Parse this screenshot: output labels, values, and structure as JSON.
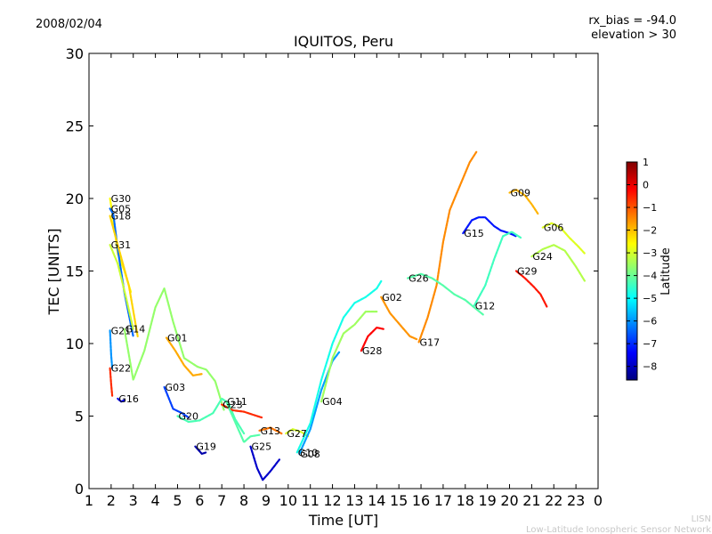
{
  "header": {
    "date": "2008/02/04",
    "bias": "rx_bias = -94.0",
    "elevation": "elevation > 30"
  },
  "footer": {
    "org_short": "LISN",
    "org_full": "Low-Latitude Ionospheric Sensor Network"
  },
  "chart_data": {
    "type": "scatter",
    "title": "IQUITOS, Peru",
    "xlabel": "Time [UT]",
    "ylabel": "TEC [UNITS]",
    "xlim": [
      1,
      24
    ],
    "ylim": [
      0,
      30
    ],
    "xticks": [
      "1",
      "2",
      "3",
      "4",
      "5",
      "6",
      "7",
      "8",
      "9",
      "10",
      "11",
      "12",
      "13",
      "14",
      "15",
      "16",
      "17",
      "18",
      "19",
      "20",
      "21",
      "22",
      "23",
      "0"
    ],
    "yticks": [
      0,
      5,
      10,
      15,
      20,
      25,
      30
    ],
    "grid": false,
    "colorbar": {
      "label": "Latitude",
      "ticks": [
        "1",
        "0",
        "−1",
        "−2",
        "−3",
        "−4",
        "−5",
        "−6",
        "−7",
        "−8"
      ],
      "range": [
        -8.6,
        1
      ],
      "colors": [
        "#00007f",
        "#0000ff",
        "#007fff",
        "#00ffff",
        "#7fff7f",
        "#ffff00",
        "#ff7f00",
        "#ff0000",
        "#7f0000"
      ]
    },
    "series": [
      {
        "name": "G30",
        "lat": -2.6,
        "points": [
          [
            1.95,
            20.0
          ],
          [
            2.1,
            18.5
          ],
          [
            2.3,
            16.2
          ],
          [
            2.6,
            15.0
          ],
          [
            2.9,
            13.5
          ]
        ]
      },
      {
        "name": "G05",
        "lat": -6.4,
        "points": [
          [
            1.95,
            19.3
          ],
          [
            2.1,
            18.9
          ],
          [
            2.3,
            16.5
          ],
          [
            2.6,
            13.5
          ],
          [
            3.0,
            10.5
          ]
        ]
      },
      {
        "name": "G18",
        "lat": -2.2,
        "points": [
          [
            1.95,
            18.8
          ],
          [
            2.3,
            16.8
          ],
          [
            2.8,
            14.0
          ],
          [
            3.2,
            10.5
          ]
        ]
      },
      {
        "name": "G31",
        "lat": -3.1,
        "points": [
          [
            1.95,
            16.8
          ],
          [
            2.3,
            15.5
          ],
          [
            2.7,
            13.0
          ],
          [
            3.0,
            11.0
          ]
        ]
      },
      {
        "name": "G21",
        "lat": -6.0,
        "points": [
          [
            1.95,
            10.9
          ],
          [
            2.0,
            9.2
          ],
          [
            2.05,
            8.3
          ]
        ]
      },
      {
        "name": "G22",
        "lat": -0.6,
        "points": [
          [
            1.95,
            8.3
          ],
          [
            2.0,
            7.2
          ],
          [
            2.05,
            6.4
          ]
        ]
      },
      {
        "name": "G16",
        "lat": -7.6,
        "points": [
          [
            2.3,
            6.2
          ],
          [
            2.45,
            6.0
          ],
          [
            2.6,
            6.1
          ]
        ]
      },
      {
        "name": "G14",
        "lat": -3.6,
        "points": [
          [
            2.6,
            11.0
          ],
          [
            3.0,
            7.5
          ],
          [
            3.5,
            9.5
          ],
          [
            4.0,
            12.5
          ],
          [
            4.4,
            13.8
          ],
          [
            4.8,
            11.5
          ],
          [
            5.3,
            9.0
          ],
          [
            5.9,
            8.4
          ],
          [
            6.3,
            8.2
          ],
          [
            6.7,
            7.4
          ],
          [
            7.1,
            5.4
          ]
        ]
      },
      {
        "name": "G01",
        "lat": -1.8,
        "points": [
          [
            4.5,
            10.4
          ],
          [
            4.9,
            9.5
          ],
          [
            5.3,
            8.5
          ],
          [
            5.7,
            7.8
          ],
          [
            6.1,
            7.9
          ]
        ]
      },
      {
        "name": "G03",
        "lat": -6.8,
        "points": [
          [
            4.4,
            7.0
          ],
          [
            4.8,
            5.5
          ],
          [
            5.2,
            5.2
          ],
          [
            5.5,
            4.9
          ]
        ]
      },
      {
        "name": "G19",
        "lat": -8.2,
        "points": [
          [
            5.8,
            2.9
          ],
          [
            6.1,
            2.4
          ],
          [
            6.3,
            2.5
          ]
        ]
      },
      {
        "name": "G20",
        "lat": -4.3,
        "points": [
          [
            5.0,
            5.0
          ],
          [
            5.5,
            4.6
          ],
          [
            6.0,
            4.7
          ],
          [
            6.6,
            5.2
          ],
          [
            7.0,
            6.2
          ],
          [
            7.3,
            5.9
          ],
          [
            7.6,
            4.8
          ],
          [
            8.0,
            3.8
          ]
        ]
      },
      {
        "name": "G23",
        "lat": -0.6,
        "points": [
          [
            7.0,
            5.8
          ],
          [
            7.5,
            5.4
          ],
          [
            8.0,
            5.3
          ],
          [
            8.4,
            5.1
          ],
          [
            8.8,
            4.9
          ]
        ]
      },
      {
        "name": "G11",
        "lat": -4.2,
        "points": [
          [
            7.2,
            6.0
          ],
          [
            7.6,
            4.6
          ],
          [
            8.0,
            3.2
          ],
          [
            8.3,
            3.6
          ],
          [
            8.7,
            3.7
          ]
        ]
      },
      {
        "name": "G13",
        "lat": -1.3,
        "points": [
          [
            8.7,
            4.0
          ],
          [
            9.2,
            4.2
          ],
          [
            9.7,
            3.8
          ]
        ]
      },
      {
        "name": "G25",
        "lat": -7.9,
        "points": [
          [
            8.3,
            2.9
          ],
          [
            8.6,
            1.4
          ],
          [
            8.85,
            0.6
          ],
          [
            9.2,
            1.2
          ],
          [
            9.6,
            2.0
          ]
        ]
      },
      {
        "name": "G27",
        "lat": -3.0,
        "points": [
          [
            9.9,
            3.8
          ],
          [
            10.2,
            4.1
          ],
          [
            10.6,
            3.9
          ],
          [
            10.9,
            3.6
          ]
        ]
      },
      {
        "name": "G08",
        "lat": -5.9,
        "points": [
          [
            10.5,
            2.4
          ],
          [
            11.0,
            4.1
          ],
          [
            11.5,
            6.8
          ],
          [
            12.0,
            8.8
          ],
          [
            12.3,
            9.4
          ]
        ]
      },
      {
        "name": "G04",
        "lat": -3.5,
        "points": [
          [
            11.5,
            6.0
          ],
          [
            12.0,
            9.0
          ],
          [
            12.5,
            10.7
          ],
          [
            13.0,
            11.3
          ],
          [
            13.5,
            12.2
          ],
          [
            14.0,
            12.2
          ]
        ]
      },
      {
        "name": "G28",
        "lat": -0.2,
        "points": [
          [
            13.3,
            9.5
          ],
          [
            13.6,
            10.5
          ],
          [
            14.0,
            11.1
          ],
          [
            14.3,
            11.0
          ]
        ]
      },
      {
        "name": "G02",
        "lat": -1.6,
        "points": [
          [
            14.2,
            13.2
          ],
          [
            14.6,
            12.1
          ],
          [
            15.1,
            11.2
          ],
          [
            15.5,
            10.5
          ],
          [
            15.8,
            10.3
          ]
        ]
      },
      {
        "name": "G10",
        "lat": -4.8,
        "points": [
          [
            10.4,
            2.5
          ],
          [
            11.0,
            4.5
          ],
          [
            11.5,
            7.5
          ],
          [
            12.0,
            10.0
          ],
          [
            12.5,
            11.8
          ],
          [
            13.0,
            12.8
          ],
          [
            13.5,
            13.2
          ],
          [
            14.0,
            13.8
          ],
          [
            14.2,
            14.3
          ]
        ]
      },
      {
        "name": "G17",
        "lat": -1.5,
        "points": [
          [
            15.9,
            10.1
          ],
          [
            16.3,
            11.8
          ],
          [
            16.7,
            14.0
          ],
          [
            17.0,
            17.0
          ],
          [
            17.3,
            19.2
          ],
          [
            17.6,
            20.3
          ],
          [
            17.9,
            21.4
          ],
          [
            18.2,
            22.5
          ],
          [
            18.5,
            23.2
          ]
        ]
      },
      {
        "name": "G26",
        "lat": -4.2,
        "points": [
          [
            15.4,
            14.5
          ],
          [
            16.0,
            14.8
          ],
          [
            16.5,
            14.5
          ],
          [
            17.0,
            14.0
          ],
          [
            17.5,
            13.4
          ],
          [
            18.0,
            13.0
          ],
          [
            18.4,
            12.5
          ],
          [
            18.8,
            12.0
          ]
        ]
      },
      {
        "name": "G15",
        "lat": -7.2,
        "points": [
          [
            17.9,
            17.6
          ],
          [
            18.3,
            18.5
          ],
          [
            18.6,
            18.7
          ],
          [
            18.9,
            18.7
          ],
          [
            19.3,
            18.1
          ],
          [
            19.6,
            17.8
          ],
          [
            20.0,
            17.6
          ],
          [
            20.3,
            17.4
          ]
        ]
      },
      {
        "name": "G12",
        "lat": -4.4,
        "points": [
          [
            18.4,
            12.6
          ],
          [
            18.9,
            14.0
          ],
          [
            19.3,
            15.8
          ],
          [
            19.7,
            17.4
          ],
          [
            20.1,
            17.7
          ],
          [
            20.5,
            17.3
          ]
        ]
      },
      {
        "name": "G09",
        "lat": -1.9,
        "points": [
          [
            20.0,
            20.4
          ],
          [
            20.3,
            20.6
          ],
          [
            20.7,
            20.2
          ],
          [
            21.0,
            19.6
          ],
          [
            21.3,
            18.9
          ]
        ]
      },
      {
        "name": "G06",
        "lat": -2.9,
        "points": [
          [
            21.5,
            18.0
          ],
          [
            21.9,
            18.3
          ],
          [
            22.3,
            18.0
          ],
          [
            22.7,
            17.3
          ],
          [
            23.1,
            16.7
          ],
          [
            23.4,
            16.2
          ]
        ]
      },
      {
        "name": "G29",
        "lat": -0.4,
        "points": [
          [
            20.3,
            15.0
          ],
          [
            20.7,
            14.5
          ],
          [
            21.1,
            13.9
          ],
          [
            21.4,
            13.4
          ],
          [
            21.7,
            12.5
          ]
        ]
      },
      {
        "name": "G24",
        "lat": -3.3,
        "points": [
          [
            21.0,
            16.0
          ],
          [
            21.5,
            16.5
          ],
          [
            22.0,
            16.8
          ],
          [
            22.5,
            16.4
          ],
          [
            23.0,
            15.3
          ],
          [
            23.4,
            14.3
          ]
        ]
      }
    ]
  }
}
